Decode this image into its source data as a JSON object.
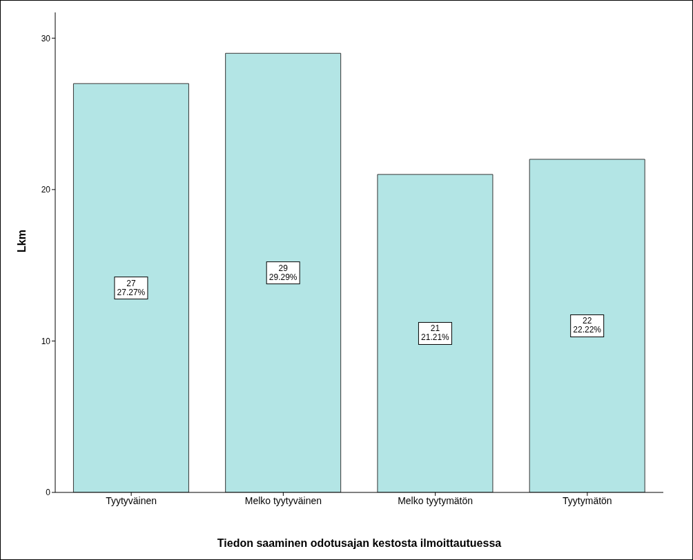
{
  "chart_data": {
    "type": "bar",
    "xlabel": "Tiedon saaminen odotusajan kestosta ilmoittautuessa",
    "ylabel": "Lkm",
    "categories": [
      "Tyytyväinen",
      "Melko tyytyväinen",
      "Melko tyytymätön",
      "Tyytymätön"
    ],
    "values": [
      27,
      29,
      21,
      22
    ],
    "value_labels": [
      "27\n27.27%",
      "29\n29.29%",
      "21\n21.21%",
      "22\n22.22%"
    ],
    "color": "#b3e5e5",
    "ylim": [
      0,
      31.7
    ],
    "yticks": [
      0,
      10,
      20,
      30
    ],
    "grid": false,
    "legend": false
  }
}
